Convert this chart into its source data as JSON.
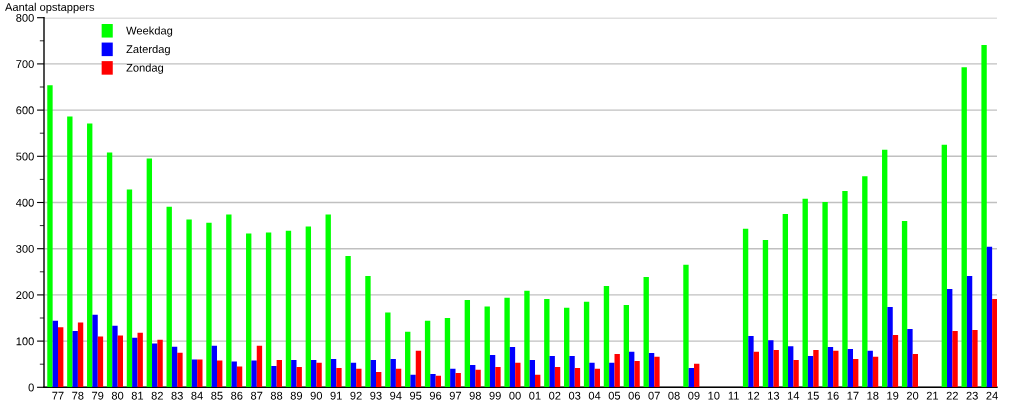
{
  "chart_data": {
    "type": "bar",
    "ylabel": "Aantal opstappers",
    "categories": [
      "77",
      "78",
      "79",
      "80",
      "81",
      "82",
      "83",
      "84",
      "85",
      "86",
      "87",
      "88",
      "89",
      "90",
      "91",
      "92",
      "93",
      "94",
      "95",
      "96",
      "97",
      "98",
      "99",
      "00",
      "01",
      "02",
      "03",
      "04",
      "05",
      "06",
      "07",
      "08",
      "09",
      "10",
      "11",
      "12",
      "13",
      "14",
      "15",
      "16",
      "17",
      "18",
      "19",
      "20",
      "21",
      "22",
      "23",
      "24"
    ],
    "series": [
      {
        "name": "Weekdag",
        "color": "#00ff00",
        "values": [
          654,
          586,
          571,
          508,
          428,
          495,
          391,
          363,
          356,
          374,
          333,
          335,
          339,
          348,
          374,
          284,
          241,
          162,
          120,
          144,
          150,
          189,
          175,
          194,
          209,
          191,
          172,
          185,
          219,
          178,
          239,
          null,
          265,
          null,
          null,
          343,
          319,
          375,
          408,
          401,
          425,
          457,
          514,
          360,
          null,
          525,
          693,
          741
        ]
      },
      {
        "name": "Zaterdag",
        "color": "#0000ff",
        "values": [
          144,
          122,
          157,
          133,
          107,
          95,
          88,
          60,
          90,
          56,
          58,
          46,
          59,
          59,
          61,
          53,
          59,
          61,
          27,
          29,
          40,
          48,
          70,
          87,
          59,
          68,
          68,
          53,
          53,
          77,
          74,
          null,
          42,
          null,
          null,
          111,
          102,
          89,
          68,
          87,
          83,
          79,
          174,
          126,
          null,
          213,
          241,
          304
        ]
      },
      {
        "name": "Zondag",
        "color": "#ff0000",
        "values": [
          130,
          140,
          110,
          112,
          118,
          103,
          75,
          60,
          58,
          45,
          90,
          59,
          44,
          53,
          42,
          40,
          33,
          40,
          79,
          25,
          31,
          38,
          44,
          53,
          27,
          44,
          42,
          40,
          72,
          57,
          66,
          null,
          51,
          null,
          null,
          77,
          81,
          59,
          81,
          79,
          61,
          66,
          113,
          72,
          null,
          122,
          124,
          191
        ]
      }
    ],
    "ylim": [
      0,
      800
    ],
    "yticks": [
      0,
      {
        "value": 50,
        "label": null
      },
      100,
      {
        "value": 150,
        "label": null
      },
      200,
      {
        "value": 250,
        "label": null
      },
      300,
      {
        "value": 350,
        "label": null
      },
      400,
      {
        "value": 450,
        "label": null
      },
      500,
      {
        "value": 550,
        "label": null
      },
      600,
      {
        "value": 650,
        "label": null
      },
      700,
      {
        "value": 750,
        "label": null
      },
      800
    ],
    "grid": "y",
    "legend": "top left"
  }
}
